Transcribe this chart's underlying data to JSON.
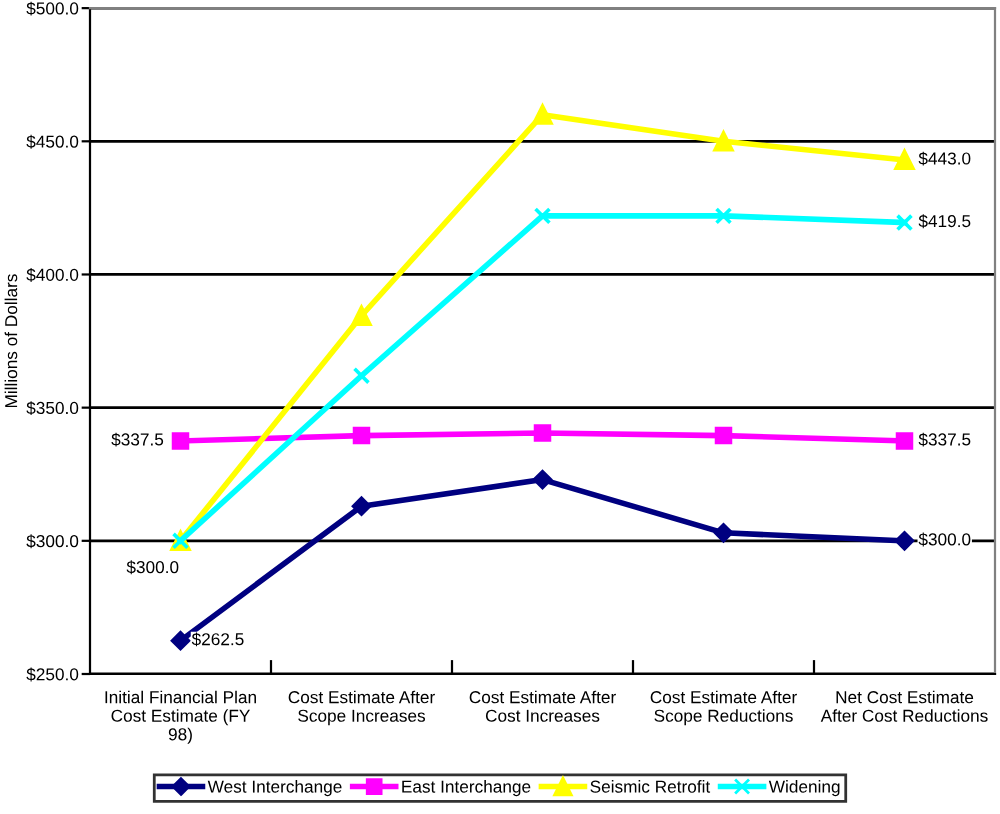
{
  "chart_data": {
    "type": "line",
    "ylabel": "Millions of Dollars",
    "categories": [
      "Initial Financial Plan Cost Estimate (FY 98)",
      "Cost Estimate After Scope Increases",
      "Cost Estimate After Cost Increases",
      "Cost Estimate After Scope Reductions",
      "Net Cost Estimate After Cost Reductions"
    ],
    "series": [
      {
        "name": "West Interchange",
        "color": "#000080",
        "marker": "diamond",
        "values": [
          262.5,
          313,
          323,
          303,
          300
        ],
        "value_labels": [
          "$262.5",
          null,
          null,
          null,
          "$300.0"
        ]
      },
      {
        "name": "East Interchange",
        "color": "#ff00ff",
        "marker": "square",
        "values": [
          337.5,
          339.5,
          340.5,
          339.5,
          337.5
        ],
        "value_labels": [
          "$337.5",
          null,
          null,
          null,
          "$337.5"
        ]
      },
      {
        "name": "Seismic Retrofit",
        "color": "#ffff00",
        "marker": "triangle",
        "values": [
          300,
          384.5,
          460,
          450,
          443
        ],
        "value_labels": [
          "$300.0",
          null,
          null,
          null,
          "$443.0"
        ]
      },
      {
        "name": "Widening",
        "color": "#00ffff",
        "marker": "cross",
        "values": [
          300,
          362,
          422,
          422,
          419.5
        ],
        "value_labels": [
          null,
          null,
          null,
          null,
          "$419.5"
        ]
      }
    ],
    "ylim": [
      250,
      500
    ],
    "yticks": [
      {
        "value": 250,
        "label": "$250.0"
      },
      {
        "value": 300,
        "label": "$300.0"
      },
      {
        "value": 350,
        "label": "$350.0"
      },
      {
        "value": 400,
        "label": "$400.0"
      },
      {
        "value": 450,
        "label": "$450.0"
      },
      {
        "value": 500,
        "label": "$500.0"
      }
    ],
    "grid": "y",
    "legend": "bottom"
  }
}
